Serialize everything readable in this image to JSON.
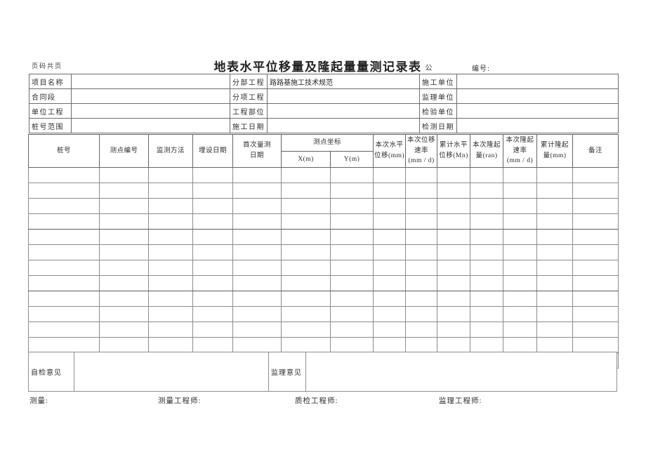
{
  "colors": {
    "background": "#ffffff",
    "line": "#6d6d6d",
    "text": "#262626"
  },
  "page": {
    "page_label": "页码共页",
    "title": "地表水平位移量及隆起量量测记录表",
    "title_suffix": "公",
    "no_label": "编号:"
  },
  "info": {
    "rows": [
      {
        "l1": "项目名称",
        "v1": "",
        "l2": "分部工程",
        "v2": "路路基施工技术规范",
        "l3": "施工单位",
        "v3": ""
      },
      {
        "l1": "合同段",
        "v1": "",
        "l2": "分项工程",
        "v2": "",
        "l3": "监理单位",
        "v3": ""
      },
      {
        "l1": "单位工程",
        "v1": "",
        "l2": "工程部位",
        "v2": "",
        "l3": "检验单位",
        "v3": ""
      },
      {
        "l1": "桩号范围",
        "v1": "",
        "l2": "施工日期",
        "v2": "",
        "l3": "检测日期",
        "v3": ""
      }
    ]
  },
  "measure_table": {
    "h_station": "桩号",
    "h_point_no": "测点编号",
    "h_method": "监测方法",
    "h_install_date": "埋设日期",
    "h_first_date": "首次量测\n日期",
    "h_coords": "测点坐标",
    "h_x": "X(m)",
    "h_y": "Y(m)",
    "h_horiz_disp": "本次水平\n位移(mm)",
    "h_disp_rate": "本次位移\n速率\n(mm / d)",
    "h_cum_horiz": "累计水平\n位移(Mn)",
    "h_uplift": "本次隆起\n量(ran)",
    "h_uplift_rate": "本次隆起\n速率\n(mm / d)",
    "h_cum_uplift": "累计隆起\n量(mm)",
    "h_remarks": "备注",
    "empty_rows": 13,
    "data_columns": 14
  },
  "review": {
    "self_label": "自检意见",
    "self_value": "",
    "supervisor_label": "监理意见",
    "supervisor_value": ""
  },
  "signatures": {
    "measure": "测量:",
    "measure_engineer": "测量工程师:",
    "qc_engineer": "质检工程师:",
    "supervision_engineer": "监理工程师:"
  }
}
